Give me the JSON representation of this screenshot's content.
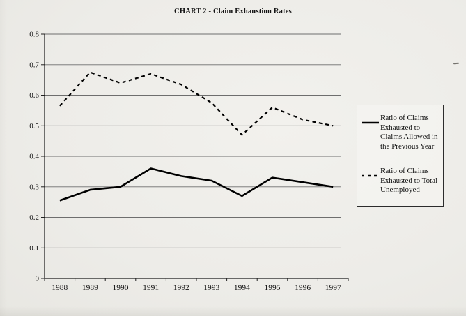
{
  "page_title": "CHART 2 - Claim Exhaustion Rates",
  "chart_data": {
    "type": "line",
    "title": "CHART 2 - Claim Exhaustion Rates",
    "categories": [
      "1988",
      "1989",
      "1990",
      "1991",
      "1992",
      "1993",
      "1994",
      "1995",
      "1996",
      "1997"
    ],
    "series": [
      {
        "name": "Ratio of Claims Exhausted to Claims Allowed in the Previous Year",
        "style": "solid",
        "values": [
          0.255,
          0.29,
          0.3,
          0.36,
          0.335,
          0.32,
          0.27,
          0.33,
          0.315,
          0.3
        ]
      },
      {
        "name": "Ratio of Claims Exhausted to Total Unemployed",
        "style": "dashed",
        "values": [
          0.565,
          0.675,
          0.64,
          0.67,
          0.635,
          0.575,
          0.47,
          0.56,
          0.52,
          0.5
        ]
      }
    ],
    "xlabel": "",
    "ylabel": "",
    "ylim": [
      0,
      0.8
    ],
    "y_ticks": [
      "0.8",
      "0.7",
      "0.6",
      "0.5",
      "0.4",
      "0.3",
      "0.2",
      "0.1",
      "0"
    ],
    "y_tick_values": [
      0.8,
      0.7,
      0.6,
      0.5,
      0.4,
      0.3,
      0.2,
      0.1,
      0
    ],
    "grid": "horizontal",
    "legend_position": "right"
  },
  "legend": {
    "entries": [
      {
        "label": "Ratio of Claims Exhausted to Claims Allowed in the Previous Year",
        "line_style": "solid"
      },
      {
        "label": "Ratio of Claims Exhausted to Total Unemployed",
        "line_style": "dashed"
      }
    ]
  },
  "colors": {
    "ink": "#141414",
    "line": "#000000",
    "grid": "#6e6e6e",
    "background": "#edece8"
  }
}
